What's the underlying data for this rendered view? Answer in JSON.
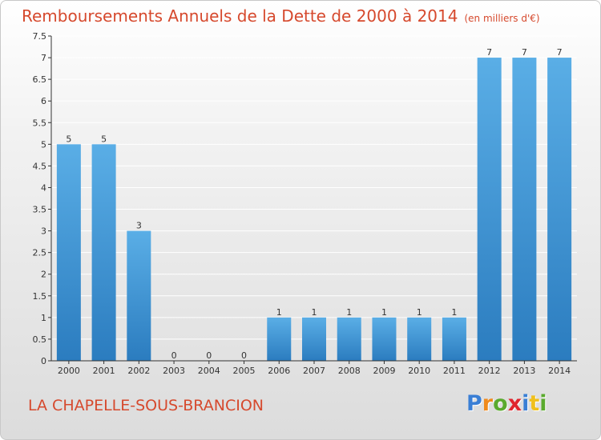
{
  "title": "Remboursements Annuels de la Dette de 2000 à 2014",
  "unit_note": "(en milliers d'€)",
  "commune": "LA CHAPELLE-SOUS-BRANCION",
  "logo": {
    "letters": [
      {
        "char": "P",
        "color": "#3a7fd5"
      },
      {
        "char": "r",
        "color": "#f08a1c"
      },
      {
        "char": "o",
        "color": "#5aaa2e"
      },
      {
        "char": "x",
        "color": "#e0262e"
      },
      {
        "char": "i",
        "color": "#3a7fd5"
      },
      {
        "char": "t",
        "color": "#f0c01c"
      },
      {
        "char": "i",
        "color": "#5aaa2e"
      }
    ]
  },
  "colors": {
    "bar_top": "#5aaee6",
    "bar_bottom": "#2b7cbf",
    "axis": "#333333",
    "grid": "#ffffff",
    "title": "#d6492d"
  },
  "chart_data": {
    "type": "bar",
    "categories": [
      "2000",
      "2001",
      "2002",
      "2003",
      "2004",
      "2005",
      "2006",
      "2007",
      "2008",
      "2009",
      "2010",
      "2011",
      "2012",
      "2013",
      "2014"
    ],
    "values": [
      5,
      5,
      3,
      0,
      0,
      0,
      1,
      1,
      1,
      1,
      1,
      1,
      7,
      7,
      7
    ],
    "data_labels": [
      "5",
      "5",
      "3",
      "0",
      "0",
      "0",
      "1",
      "1",
      "1",
      "1",
      "1",
      "1",
      "7",
      "7",
      "7"
    ],
    "yticks": [
      0,
      0.5,
      1,
      1.5,
      2,
      2.5,
      3,
      3.5,
      4,
      4.5,
      5,
      5.5,
      6,
      6.5,
      7,
      7.5
    ],
    "ytick_labels": [
      "0",
      "0.5",
      "1",
      "1.5",
      "2",
      "2.5",
      "3",
      "3.5",
      "4",
      "4.5",
      "5",
      "5.5",
      "6",
      "6.5",
      "7",
      "7.5"
    ],
    "ylim": [
      0,
      7.5
    ],
    "grid": true,
    "legend": "none"
  }
}
